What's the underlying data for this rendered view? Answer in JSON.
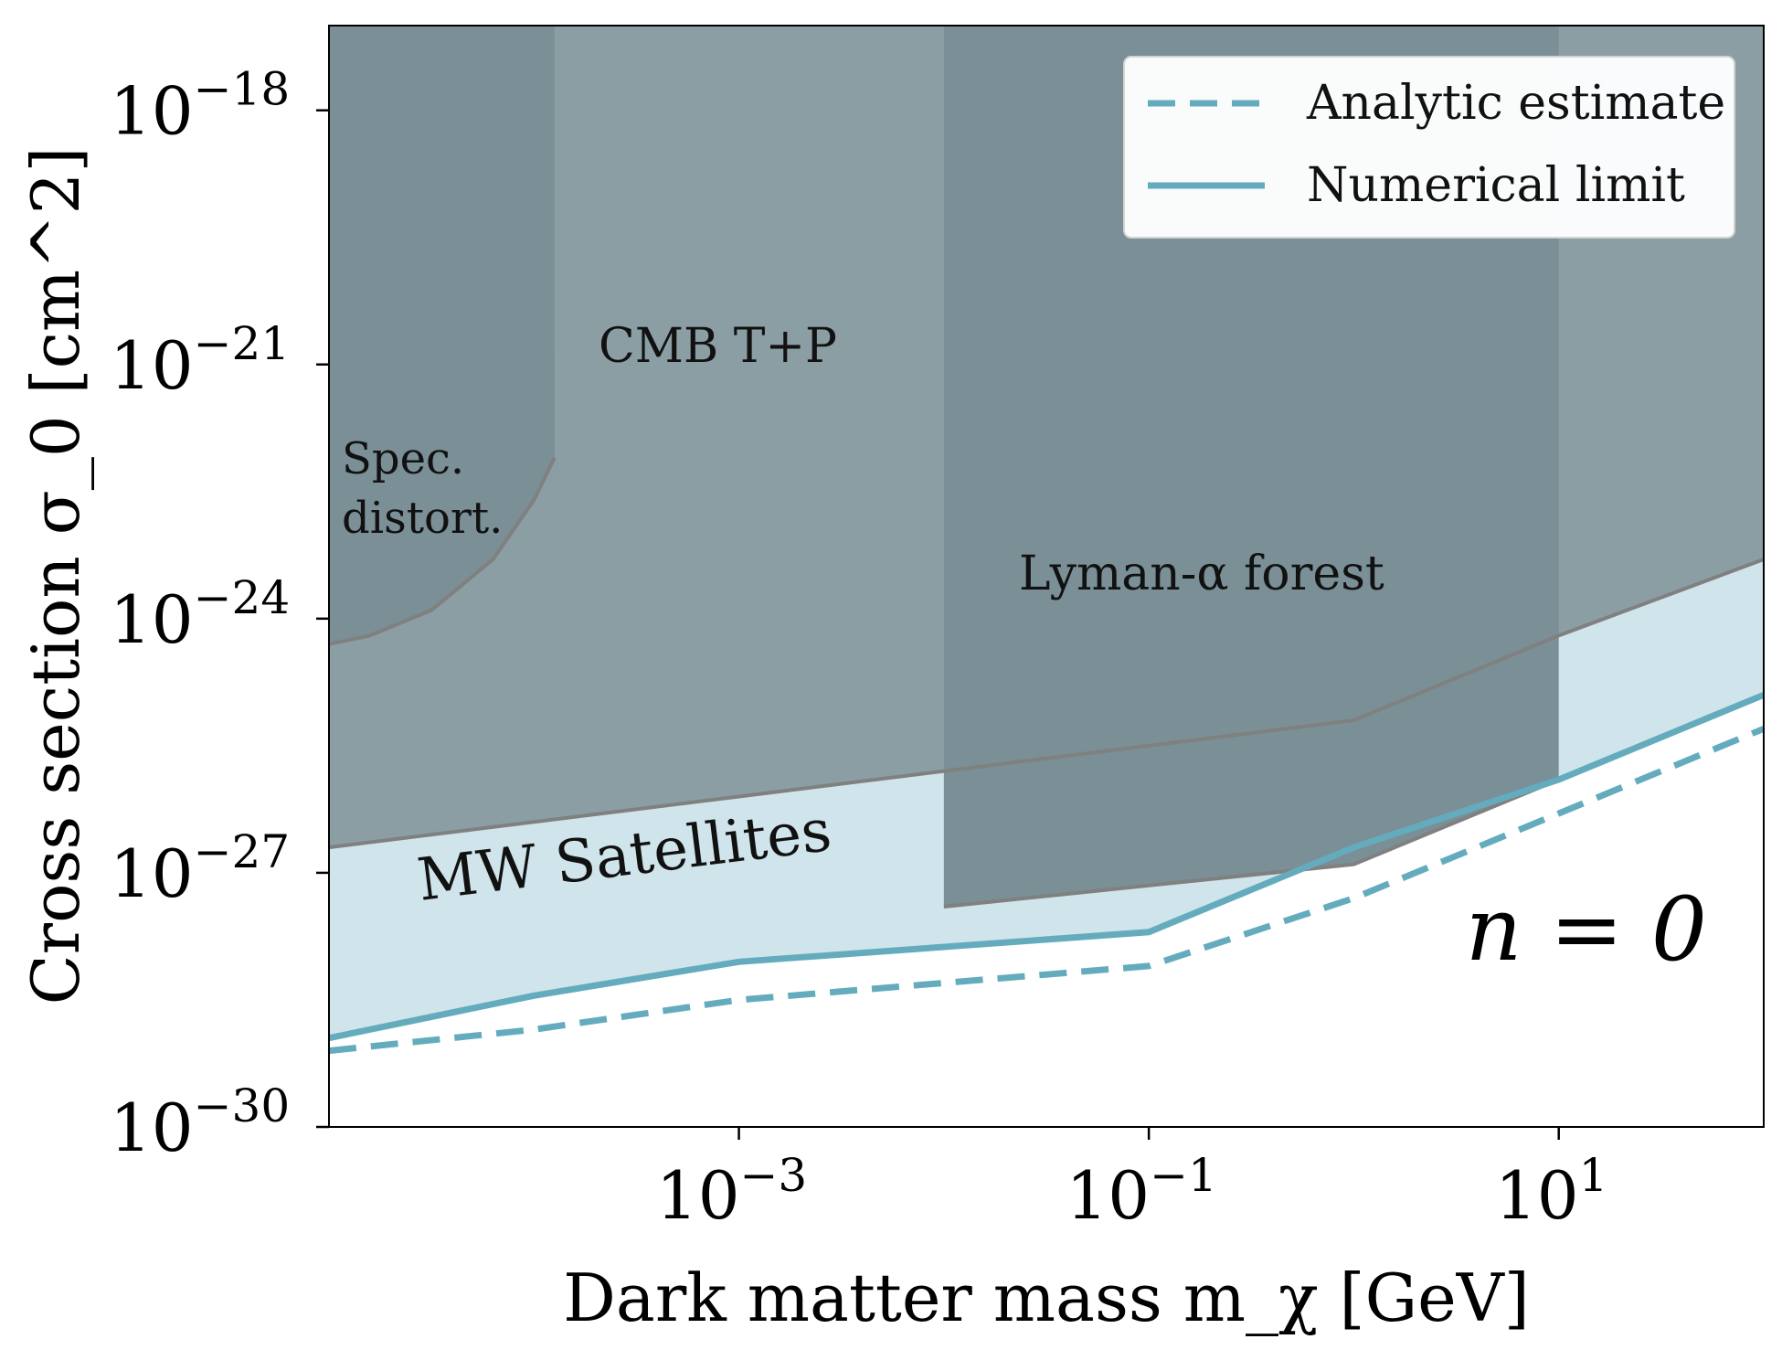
{
  "chart_data": {
    "type": "area",
    "xlabel": "Dark matter mass m_χ [GeV]",
    "ylabel": "Cross section σ_0 [cm^2]",
    "x_scale": "log",
    "y_scale": "log",
    "xlim": [
      1e-05,
      100
    ],
    "ylim": [
      1e-30,
      1e-17
    ],
    "x_ticks": [
      {
        "value": 0.001,
        "base": "10",
        "exp": "−3"
      },
      {
        "value": 0.1,
        "base": "10",
        "exp": "−1"
      },
      {
        "value": 10,
        "base": "10",
        "exp": "1"
      }
    ],
    "y_ticks": [
      {
        "value": 1e-18,
        "base": "10",
        "exp": "−18"
      },
      {
        "value": 1e-21,
        "base": "10",
        "exp": "−21"
      },
      {
        "value": 1e-24,
        "base": "10",
        "exp": "−24"
      },
      {
        "value": 1e-27,
        "base": "10",
        "exp": "−27"
      },
      {
        "value": 1e-30,
        "base": "10",
        "exp": "−30"
      }
    ],
    "grid": false,
    "legend_position": "top-right",
    "regions": [
      {
        "name": "CMB T+P",
        "color": "#8a9ea4",
        "boundary": {
          "x": [
            1e-05,
            0.001,
            0.1,
            1,
            10,
            100
          ],
          "y": [
            -26.7,
            -26.1,
            -25.5,
            -25.2,
            -24.2,
            -23.3
          ]
        }
      },
      {
        "name": "Spec. distort.",
        "color": "#7a8f96",
        "boundary": {
          "x": [
            1e-05,
            1.58e-05,
            3.16e-05,
            6.31e-05,
            0.0001,
            0.000126
          ],
          "y": [
            -24.3,
            -24.2,
            -23.9,
            -23.3,
            -22.6,
            -22.1
          ]
        }
      },
      {
        "name": "Lyman-α forest",
        "color": "#7a8f96",
        "x_range": [
          0.01,
          10
        ],
        "boundary": {
          "x": [
            0.01,
            1,
            10
          ],
          "y": [
            -27.4,
            -26.9,
            -25.9
          ]
        }
      },
      {
        "name": "MW Satellites",
        "color": "#d0e4eb"
      }
    ],
    "series": [
      {
        "name": "Analytic estimate",
        "style": "dashed",
        "color": "#64acbd",
        "x": [
          1e-05,
          0.0001,
          0.001,
          0.1,
          1,
          10,
          100
        ],
        "y": [
          -29.1,
          -28.85,
          -28.5,
          -28.1,
          -27.3,
          -26.3,
          -25.3
        ]
      },
      {
        "name": "Numerical limit",
        "style": "solid",
        "color": "#64acbd",
        "x": [
          1e-05,
          0.0001,
          0.001,
          0.1,
          1,
          10,
          100
        ],
        "y": [
          -28.95,
          -28.45,
          -28.05,
          -27.7,
          -26.7,
          -25.9,
          -24.9
        ]
      }
    ],
    "annotations": {
      "cmb": "CMB T+P",
      "spec_line1": "Spec.",
      "spec_line2": "distort.",
      "lyman": "Lyman-α forest",
      "mw": "MW Satellites",
      "n_label": "n = 0"
    }
  }
}
